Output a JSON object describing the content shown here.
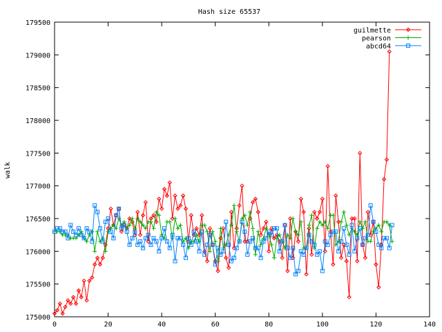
{
  "chart_data": {
    "type": "line",
    "title": "Hash size 65537",
    "xlabel": "",
    "ylabel": "walk",
    "xlim": [
      0,
      140
    ],
    "ylim": [
      175000,
      179500
    ],
    "x_ticks": [
      "0",
      "20",
      "40",
      "60",
      "80",
      "100",
      "120",
      "140"
    ],
    "y_ticks": [
      "175000",
      "175500",
      "176000",
      "176500",
      "177000",
      "177500",
      "178000",
      "178500",
      "179000",
      "179500"
    ],
    "grid": false,
    "legend_position": "top-right",
    "series": [
      {
        "name": "guilmette",
        "color": "#ff0000",
        "marker": "diamond",
        "values": [
          175050,
          175100,
          175200,
          175050,
          175150,
          175250,
          175200,
          175300,
          175200,
          175400,
          175300,
          175550,
          175250,
          175550,
          175600,
          175800,
          175900,
          175800,
          175900,
          176100,
          176350,
          176650,
          176400,
          176550,
          176650,
          176300,
          176400,
          176350,
          176500,
          176450,
          176250,
          176600,
          176250,
          176550,
          176750,
          176150,
          176500,
          176550,
          176450,
          176800,
          176650,
          176950,
          176850,
          177050,
          176500,
          176850,
          176650,
          176700,
          176850,
          176650,
          176150,
          176550,
          176250,
          176350,
          176250,
          176550,
          176000,
          175850,
          176350,
          176100,
          175850,
          175700,
          176200,
          176350,
          175900,
          175750,
          176600,
          176050,
          176350,
          176700,
          177000,
          176150,
          176150,
          176500,
          176750,
          176800,
          176600,
          176250,
          176350,
          176450,
          176000,
          176350,
          176200,
          176250,
          176150,
          175900,
          176400,
          175700,
          176500,
          175900,
          176300,
          176150,
          176800,
          176600,
          175650,
          176350,
          175950,
          176600,
          176500,
          176600,
          176800,
          176000,
          177300,
          176300,
          175800,
          176850,
          176450,
          175900,
          176100,
          175850,
          175300,
          176500,
          176500,
          175850,
          177500,
          176100,
          175900,
          176600,
          176250,
          176450,
          175800,
          175450,
          176100,
          177100,
          177400,
          179050
        ]
      },
      {
        "name": "pearson",
        "color": "#00aa00",
        "marker": "plus",
        "values": [
          176300,
          176300,
          176300,
          176250,
          176250,
          176250,
          176200,
          176200,
          176200,
          176250,
          176300,
          176200,
          176150,
          176250,
          176300,
          176000,
          176300,
          176150,
          176200,
          176000,
          176300,
          176350,
          176400,
          176350,
          176500,
          176400,
          176450,
          176350,
          176400,
          176500,
          176350,
          176500,
          176450,
          176400,
          176350,
          176450,
          176450,
          176350,
          176600,
          176550,
          176250,
          176200,
          176450,
          176450,
          176200,
          176500,
          176350,
          176400,
          176150,
          176200,
          176050,
          176150,
          176150,
          176250,
          176150,
          176400,
          176400,
          176300,
          176000,
          176300,
          176150,
          175850,
          176350,
          176050,
          176100,
          176250,
          176400,
          176700,
          176300,
          176150,
          176500,
          176550,
          176400,
          176600,
          176350,
          175950,
          176300,
          176100,
          176200,
          176350,
          176250,
          176100,
          175900,
          176200,
          176250,
          176150,
          176050,
          176250,
          176200,
          176500,
          176300,
          176250,
          176450,
          176050,
          176050,
          176400,
          176550,
          176050,
          176350,
          176450,
          176400,
          176450,
          176350,
          176550,
          176550,
          176100,
          176150,
          176450,
          176600,
          176400,
          176250,
          176350,
          176300,
          176250,
          176450,
          176350,
          176450,
          176150,
          176150,
          176300,
          176350,
          176400,
          176300,
          176450,
          176450,
          176400,
          176150
        ]
      },
      {
        "name": "abcd64",
        "color": "#0080ff",
        "marker": "square",
        "values": [
          176300,
          176350,
          176350,
          176300,
          176300,
          176200,
          176400,
          176300,
          176250,
          176350,
          176250,
          176200,
          176350,
          176300,
          176150,
          176700,
          176600,
          176350,
          176150,
          176450,
          176500,
          176300,
          176200,
          176550,
          176650,
          176350,
          176400,
          176300,
          176100,
          176200,
          176300,
          176100,
          176150,
          176050,
          176200,
          176250,
          176100,
          176200,
          176150,
          176000,
          176200,
          176350,
          176150,
          176050,
          176250,
          175850,
          176200,
          176200,
          176100,
          175900,
          176200,
          176100,
          176300,
          176150,
          176000,
          176300,
          175950,
          176100,
          176250,
          176100,
          175800,
          176050,
          175950,
          176000,
          176450,
          176100,
          175850,
          175900,
          176050,
          176150,
          176450,
          176300,
          175950,
          176150,
          176200,
          176050,
          176050,
          175900,
          176150,
          176200,
          176300,
          176250,
          176350,
          176350,
          176000,
          176150,
          176400,
          176050,
          175900,
          176050,
          175650,
          175700,
          176000,
          175950,
          176050,
          176250,
          176150,
          176100,
          175950,
          176000,
          175700,
          176150,
          176100,
          176250,
          176300,
          176300,
          176000,
          176150,
          176350,
          176100,
          175950,
          176400,
          176000,
          176200,
          176350,
          176100,
          176200,
          176250,
          176700,
          176450,
          176300,
          176100,
          176050,
          176200,
          176200,
          176050,
          176400
        ]
      }
    ]
  }
}
